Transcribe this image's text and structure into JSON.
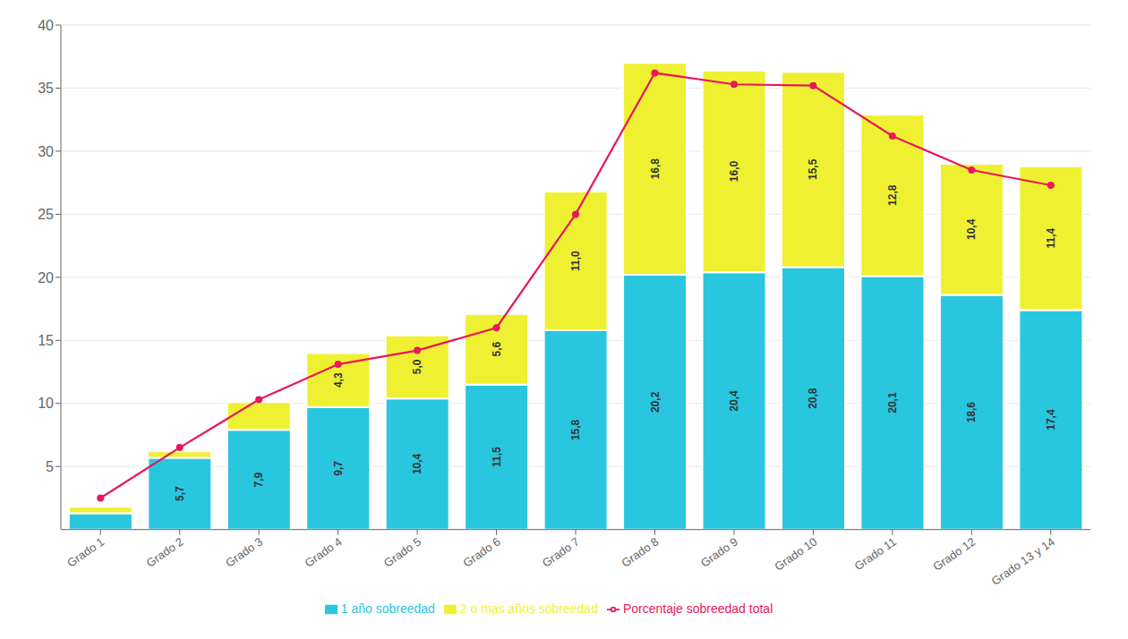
{
  "chart_data": {
    "type": "bar",
    "stacked": true,
    "grid": true,
    "legend": "bottom",
    "categories": [
      "Grado 1",
      "Grado 2",
      "Grado 3",
      "Grado 4",
      "Grado 5",
      "Grado 6",
      "Grado 7",
      "Grado 8",
      "Grado 9",
      "Grado 10",
      "Grado 11",
      "Grado 12",
      "Grado 13 y 14"
    ],
    "ylim": [
      0,
      40
    ],
    "yticks": [
      5,
      10,
      15,
      20,
      25,
      30,
      35,
      40
    ],
    "series": [
      {
        "name": "1 año sobreedad",
        "type": "bar",
        "color": "#29C6E0",
        "values": [
          1.3,
          5.7,
          7.9,
          9.7,
          10.4,
          11.5,
          15.8,
          20.2,
          20.4,
          20.8,
          20.1,
          18.6,
          17.4
        ],
        "data_labels": true,
        "value_labels": [
          null,
          "5,7",
          "7,9",
          "9,7",
          "10,4",
          "11,5",
          "15,8",
          "20,2",
          "20,4",
          "20,8",
          "20,1",
          "18,6",
          "17,4"
        ]
      },
      {
        "name": "2 o mas años sobreedad",
        "type": "bar",
        "color": "#F0F033",
        "values": [
          0.5,
          0.5,
          2.2,
          4.3,
          5.0,
          5.6,
          11.0,
          16.8,
          16.0,
          15.5,
          12.8,
          10.4,
          11.4
        ],
        "data_labels": true,
        "value_labels": [
          null,
          null,
          null,
          "4,3",
          "5,0",
          "5,6",
          "11,0",
          "16,8",
          "16,0",
          "15,5",
          "12,8",
          "10,4",
          "11,4"
        ]
      },
      {
        "name": "Porcentaje sobreedad total",
        "type": "line",
        "color": "#E8185A",
        "marker": "circle",
        "values": [
          2.5,
          6.5,
          10.3,
          13.1,
          14.2,
          16.0,
          25.0,
          36.2,
          35.3,
          35.2,
          31.2,
          28.5,
          27.3
        ]
      }
    ]
  }
}
